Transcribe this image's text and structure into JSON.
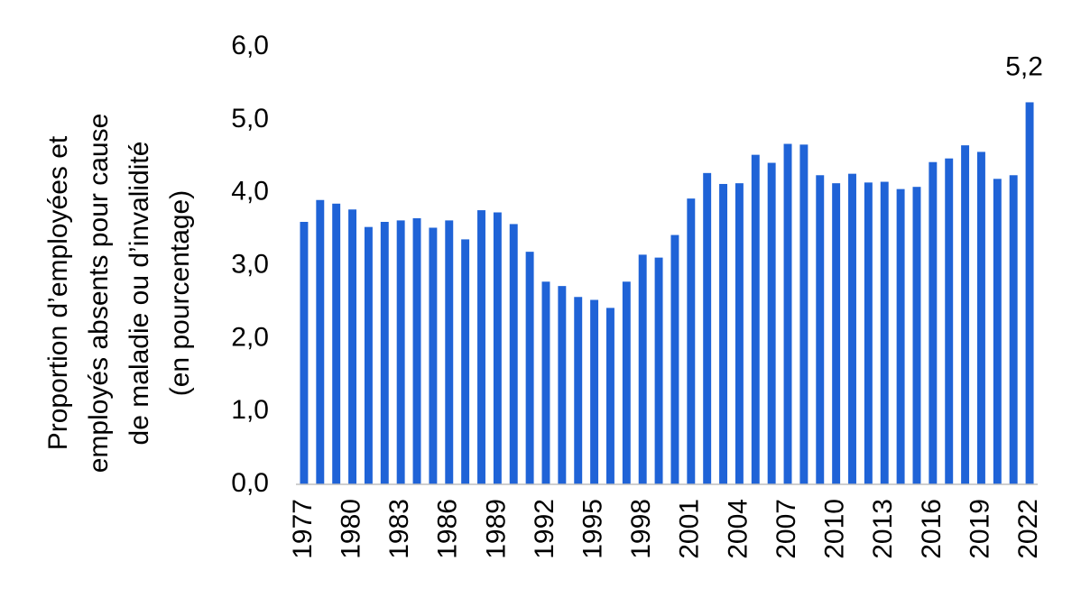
{
  "chart_data": {
    "type": "bar",
    "categories": [
      "1977",
      "1978",
      "1979",
      "1980",
      "1981",
      "1982",
      "1983",
      "1984",
      "1985",
      "1986",
      "1987",
      "1988",
      "1989",
      "1990",
      "1991",
      "1992",
      "1993",
      "1994",
      "1995",
      "1996",
      "1997",
      "1998",
      "1999",
      "2000",
      "2001",
      "2002",
      "2003",
      "2004",
      "2005",
      "2006",
      "2007",
      "2008",
      "2009",
      "2010",
      "2011",
      "2012",
      "2013",
      "2014",
      "2015",
      "2016",
      "2017",
      "2018",
      "2019",
      "2020",
      "2021",
      "2022"
    ],
    "x_tick_labels": [
      "1977",
      "1980",
      "1983",
      "1986",
      "1989",
      "1992",
      "1995",
      "1998",
      "2001",
      "2004",
      "2007",
      "2010",
      "2013",
      "2016",
      "2019",
      "2022"
    ],
    "values": [
      3.6,
      3.9,
      3.85,
      3.77,
      3.53,
      3.6,
      3.62,
      3.65,
      3.52,
      3.62,
      3.36,
      3.76,
      3.73,
      3.57,
      3.19,
      2.78,
      2.72,
      2.57,
      2.53,
      2.42,
      2.78,
      3.15,
      3.11,
      3.42,
      3.92,
      4.27,
      4.12,
      4.13,
      4.52,
      4.41,
      4.67,
      4.66,
      4.24,
      4.13,
      4.26,
      4.14,
      4.15,
      4.05,
      4.08,
      4.42,
      4.47,
      4.65,
      4.56,
      4.19,
      4.24,
      5.24
    ],
    "title": "",
    "xlabel": "",
    "ylabel_lines": [
      "Proportion d’employées et",
      "employés absents pour cause",
      "de maladie ou d’invalidité",
      "(en pourcentage)"
    ],
    "ylim": [
      0,
      6
    ],
    "y_ticks": [
      "0,0",
      "1,0",
      "2,0",
      "3,0",
      "4,0",
      "5,0",
      "6,0"
    ],
    "annotation": {
      "category": "2022",
      "text": "5,2"
    },
    "bar_color": "#1F63D7",
    "grid": false,
    "legend": "none"
  }
}
